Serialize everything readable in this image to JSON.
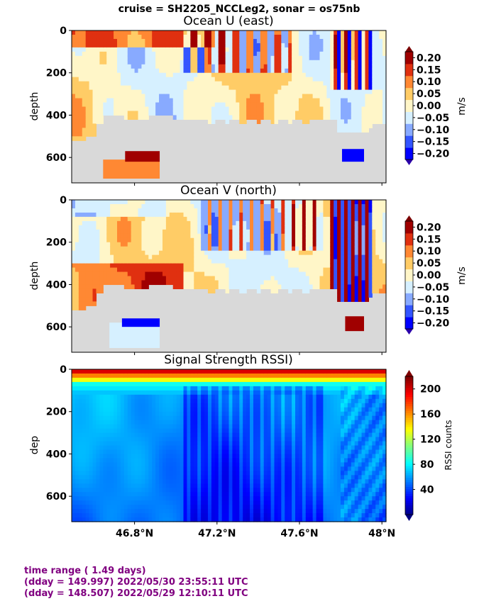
{
  "suptitle": "cruise = SH2205_NCCLeg2,  sonar = os75nb",
  "footer": {
    "line1": "time range ( 1.49 days)",
    "line2": "(dday = 149.997) 2022/05/30 23:55:11 UTC",
    "line3": "(dday = 148.507) 2022/05/29 12:10:11 UTC"
  },
  "chart_data": [
    {
      "type": "heatmap",
      "title": "Ocean U (east)",
      "ylabel": "depth",
      "colorbar_label": "m/s",
      "colorbar_ticks": [
        "0.20",
        "0.15",
        "0.10",
        "0.05",
        "0.00",
        "−0.05",
        "−0.10",
        "−0.15",
        "−0.20"
      ],
      "colorbar_range": [
        -0.2,
        0.2
      ],
      "y_ticks": [
        0,
        200,
        400,
        600
      ],
      "ylim": [
        720,
        0
      ],
      "xlim": [
        46.495,
        48.02
      ],
      "x_ticks": [
        46.8,
        47.2,
        47.6,
        48.0
      ],
      "nodata_color": "#d9d9d9",
      "colors": [
        "#0000ff",
        "#3355ff",
        "#88aaff",
        "#d6f0ff",
        "#fff6c8",
        "#ffcc66",
        "#ff8833",
        "#e03010",
        "#a00000"
      ]
    },
    {
      "type": "heatmap",
      "title": "Ocean V (north)",
      "ylabel": "depth",
      "colorbar_label": "m/s",
      "colorbar_ticks": [
        "0.20",
        "0.15",
        "0.10",
        "0.05",
        "0.00",
        "−0.05",
        "−0.10",
        "−0.15",
        "−0.20"
      ],
      "colorbar_range": [
        -0.2,
        0.2
      ],
      "y_ticks": [
        0,
        200,
        400,
        600
      ],
      "ylim": [
        720,
        0
      ],
      "xlim": [
        46.495,
        48.02
      ],
      "x_ticks": [
        46.8,
        47.2,
        47.6,
        48.0
      ],
      "nodata_color": "#d9d9d9"
    },
    {
      "type": "heatmap",
      "title": "Signal Strength RSSI)",
      "ylabel": "dep",
      "colorbar_label": "RSSI counts",
      "colorbar_ticks": [
        "200",
        "160",
        "120",
        "80",
        "40"
      ],
      "colorbar_range": [
        0,
        220
      ],
      "y_ticks": [
        0,
        200,
        400,
        600
      ],
      "ylim": [
        720,
        0
      ],
      "xlim": [
        46.495,
        48.02
      ],
      "x_ticks": [
        46.8,
        47.2,
        47.6,
        48.0
      ],
      "x_tick_labels": [
        "46.8°N",
        "47.2°N",
        "47.6°N",
        "48°N"
      ]
    }
  ]
}
